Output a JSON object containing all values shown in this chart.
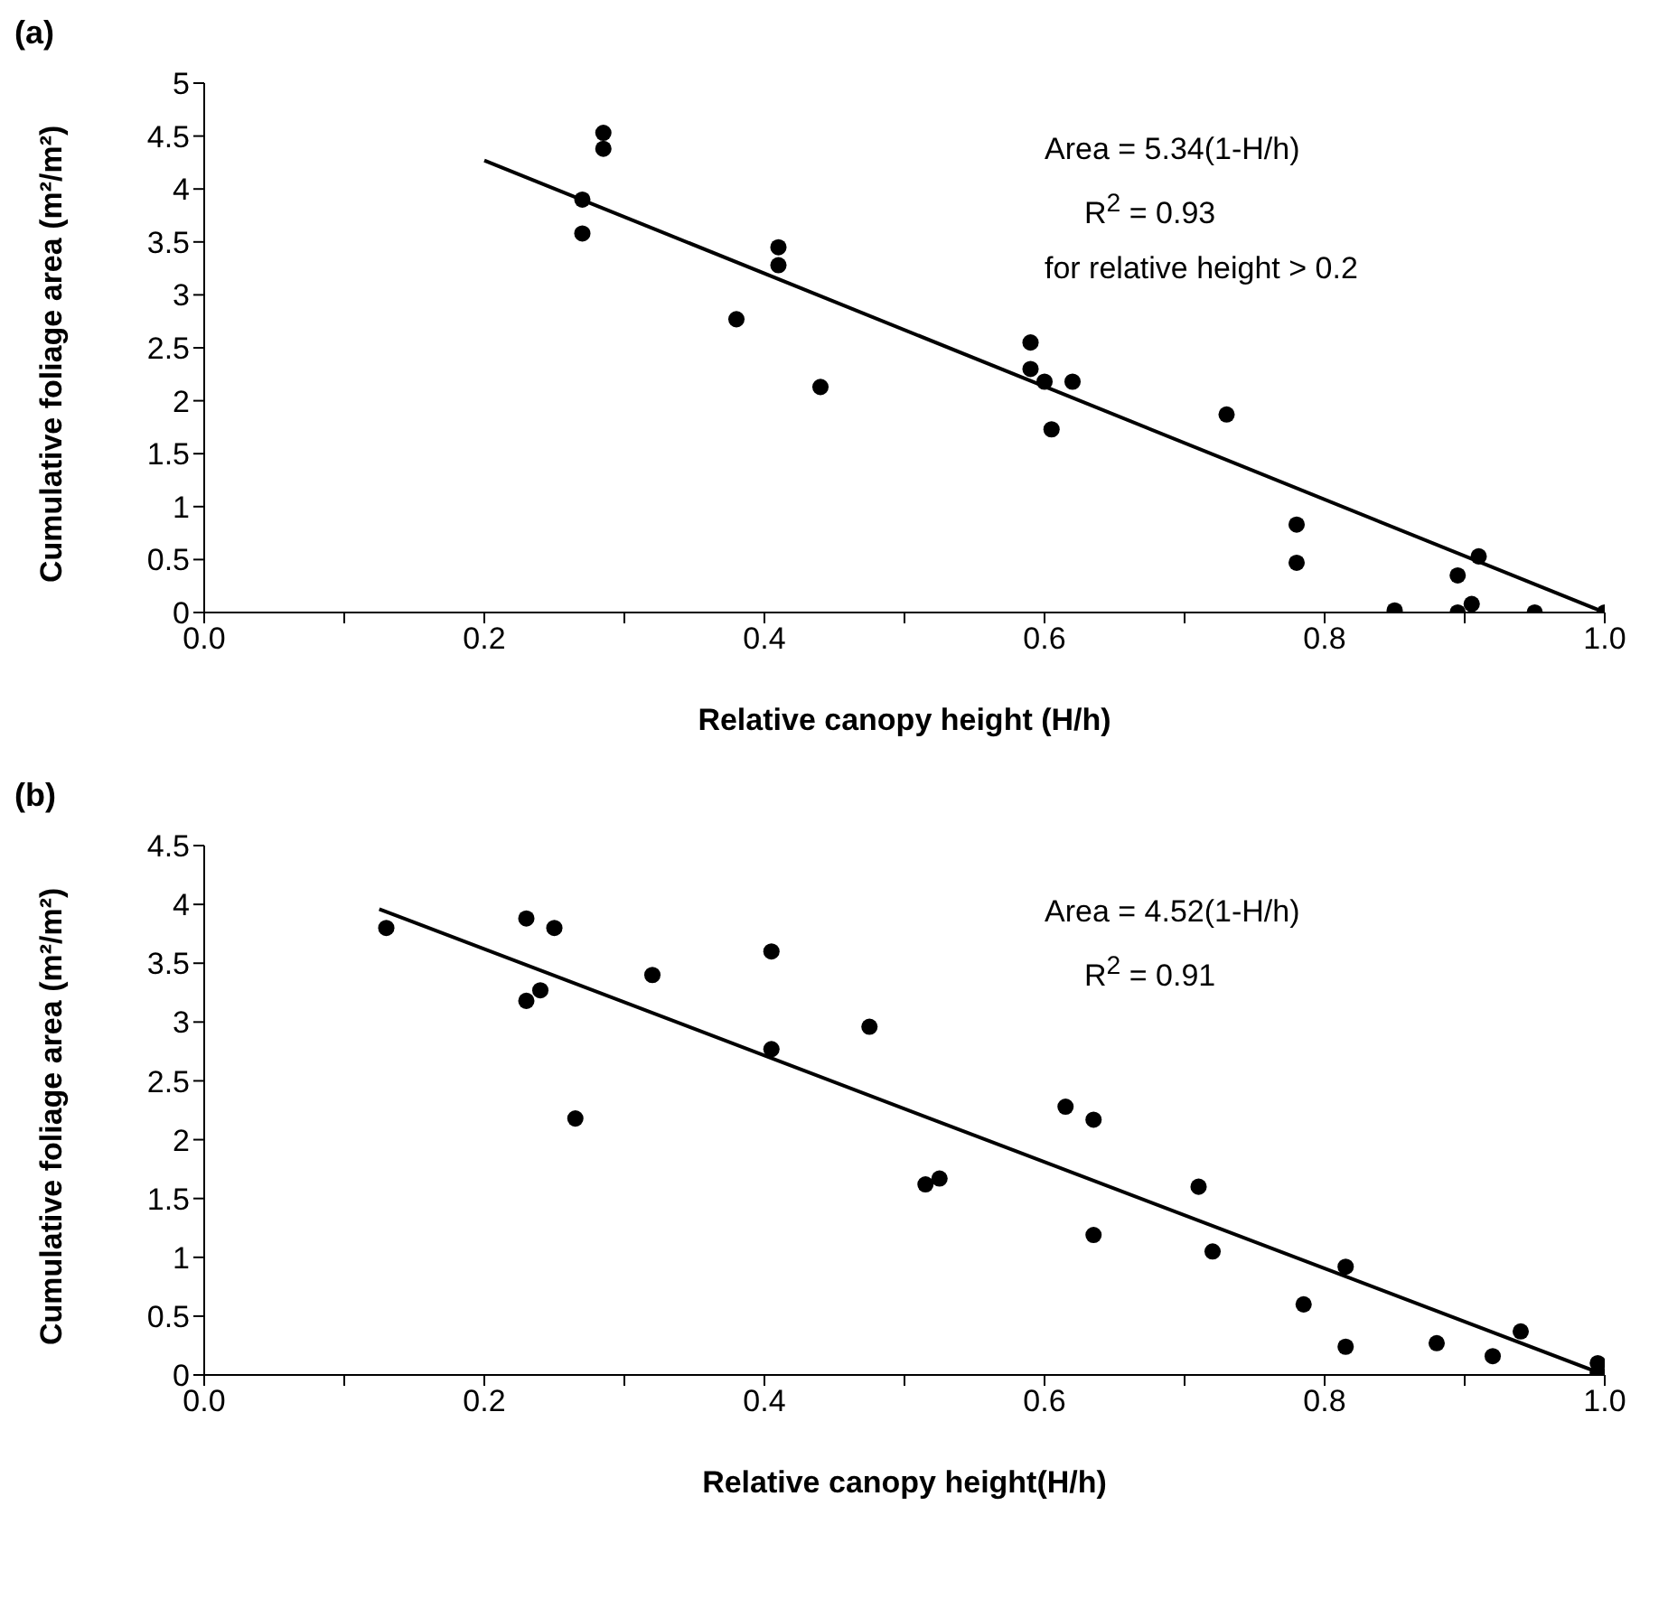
{
  "chart_data": [
    {
      "type": "scatter",
      "title": "(a)",
      "xlabel": "Relative  canopy height (H/h)",
      "ylabel": "Cumulative foliage area (m²/m²)",
      "series": [
        {
          "marker": "circle",
          "color": "#000000",
          "x": [
            0.27,
            0.27,
            0.285,
            0.285,
            0.38,
            0.41,
            0.41,
            0.44,
            0.59,
            0.59,
            0.6,
            0.62,
            0.605,
            0.73,
            0.78,
            0.78,
            0.85,
            0.895,
            0.895,
            0.905,
            0.91,
            0.95,
            1.0
          ],
          "values": [
            3.9,
            3.58,
            4.53,
            4.38,
            2.77,
            3.45,
            3.28,
            2.13,
            2.55,
            2.3,
            2.18,
            2.18,
            1.73,
            1.87,
            0.83,
            0.47,
            0.02,
            0.35,
            0,
            0.08,
            0.53,
            0,
            0
          ]
        },
        {
          "type": "line",
          "marker": "none",
          "color": "#000000",
          "x": [
            0.2,
            1.0
          ],
          "values": [
            4.27,
            0
          ]
        }
      ],
      "xlim": [
        0,
        1
      ],
      "xticks": [
        {
          "value": 0,
          "label": "0.0"
        },
        {
          "value": 0.1,
          "label": null
        },
        {
          "value": 0.2,
          "label": "0.2"
        },
        {
          "value": 0.3,
          "label": null
        },
        {
          "value": 0.4,
          "label": "0.4"
        },
        {
          "value": 0.5,
          "label": null
        },
        {
          "value": 0.6,
          "label": "0.6"
        },
        {
          "value": 0.7,
          "label": null
        },
        {
          "value": 0.8,
          "label": "0.8"
        },
        {
          "value": 0.9,
          "label": null
        },
        {
          "value": 1,
          "label": "1.0"
        }
      ],
      "ylim": [
        0,
        5
      ],
      "yticks": [
        0,
        0.5,
        1,
        1.5,
        2,
        2.5,
        3,
        3.5,
        4,
        4.5,
        5
      ],
      "annotations": [
        "Area = 5.34(1-H/h)",
        "R$^{2}$ = 0.93",
        "for relative height > 0.2"
      ]
    },
    {
      "type": "scatter",
      "title": "(b)",
      "xlabel": "Relative  canopy height(H/h)",
      "ylabel": "Cumulative foliage area (m²/m²)",
      "series": [
        {
          "marker": "circle",
          "color": "#000000",
          "x": [
            0.13,
            0.23,
            0.23,
            0.24,
            0.25,
            0.265,
            0.32,
            0.405,
            0.405,
            0.475,
            0.515,
            0.525,
            0.615,
            0.635,
            0.635,
            0.71,
            0.72,
            0.785,
            0.815,
            0.815,
            0.88,
            0.92,
            0.94,
            0.995,
            0.995
          ],
          "values": [
            3.8,
            3.88,
            3.18,
            3.27,
            3.8,
            2.18,
            3.4,
            3.6,
            2.77,
            2.96,
            1.62,
            1.67,
            2.28,
            2.17,
            1.19,
            1.6,
            1.05,
            0.6,
            0.92,
            0.24,
            0.27,
            0.16,
            0.37,
            0.1,
            0.02
          ]
        },
        {
          "type": "line",
          "marker": "none",
          "color": "#000000",
          "x": [
            0.125,
            1.0
          ],
          "values": [
            3.96,
            0
          ]
        }
      ],
      "xlim": [
        0,
        1
      ],
      "xticks": [
        {
          "value": 0,
          "label": "0.0"
        },
        {
          "value": 0.1,
          "label": null
        },
        {
          "value": 0.2,
          "label": "0.2"
        },
        {
          "value": 0.3,
          "label": null
        },
        {
          "value": 0.4,
          "label": "0.4"
        },
        {
          "value": 0.5,
          "label": null
        },
        {
          "value": 0.6,
          "label": "0.6"
        },
        {
          "value": 0.7,
          "label": null
        },
        {
          "value": 0.8,
          "label": "0.8"
        },
        {
          "value": 0.9,
          "label": null
        },
        {
          "value": 1,
          "label": "1.0"
        }
      ],
      "ylim": [
        0,
        4.5
      ],
      "yticks": [
        0,
        0.5,
        1,
        1.5,
        2,
        2.5,
        3,
        3.5,
        4,
        4.5
      ],
      "annotations": [
        "Area = 4.52(1-H/h)",
        "R$^{2}$ = 0.91"
      ]
    }
  ]
}
